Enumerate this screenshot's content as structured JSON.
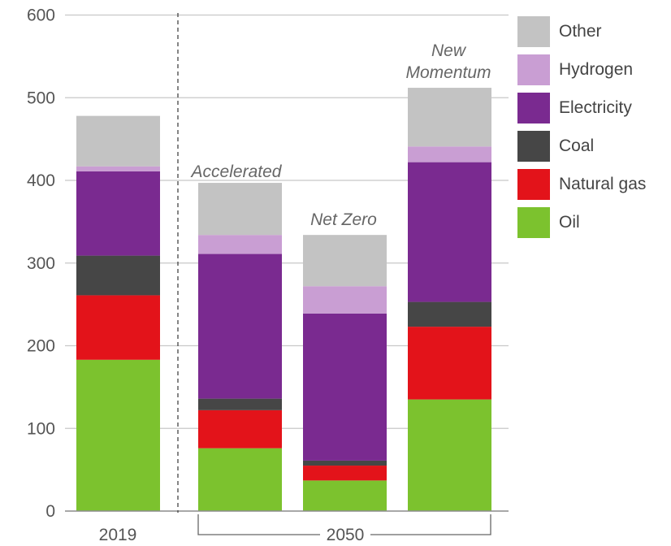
{
  "chart_data": {
    "type": "bar",
    "stacked": true,
    "categories": [
      "2019",
      "Accelerated",
      "Net Zero",
      "New Momentum"
    ],
    "bar_annotations": [
      "",
      "Accelerated",
      "Net Zero",
      "New Momentum"
    ],
    "x_group_labels": [
      "2019",
      "2050"
    ],
    "ylim": [
      0,
      600
    ],
    "yticks": [
      0,
      100,
      200,
      300,
      400,
      500,
      600
    ],
    "grid": true,
    "legend_position": "right",
    "series": [
      {
        "name": "Oil",
        "color": "#7cc22e",
        "values": [
          183,
          76,
          37,
          135
        ]
      },
      {
        "name": "Natural gas",
        "color": "#e3131a",
        "values": [
          78,
          46,
          18,
          88
        ]
      },
      {
        "name": "Coal",
        "color": "#464646",
        "values": [
          48,
          14,
          6,
          30
        ]
      },
      {
        "name": "Electricity",
        "color": "#7a2a90",
        "values": [
          102,
          175,
          178,
          169
        ]
      },
      {
        "name": "Hydrogen",
        "color": "#c99ed3",
        "values": [
          6,
          23,
          33,
          19
        ]
      },
      {
        "name": "Other",
        "color": "#c3c3c3",
        "values": [
          61,
          63,
          62,
          71
        ]
      }
    ]
  }
}
